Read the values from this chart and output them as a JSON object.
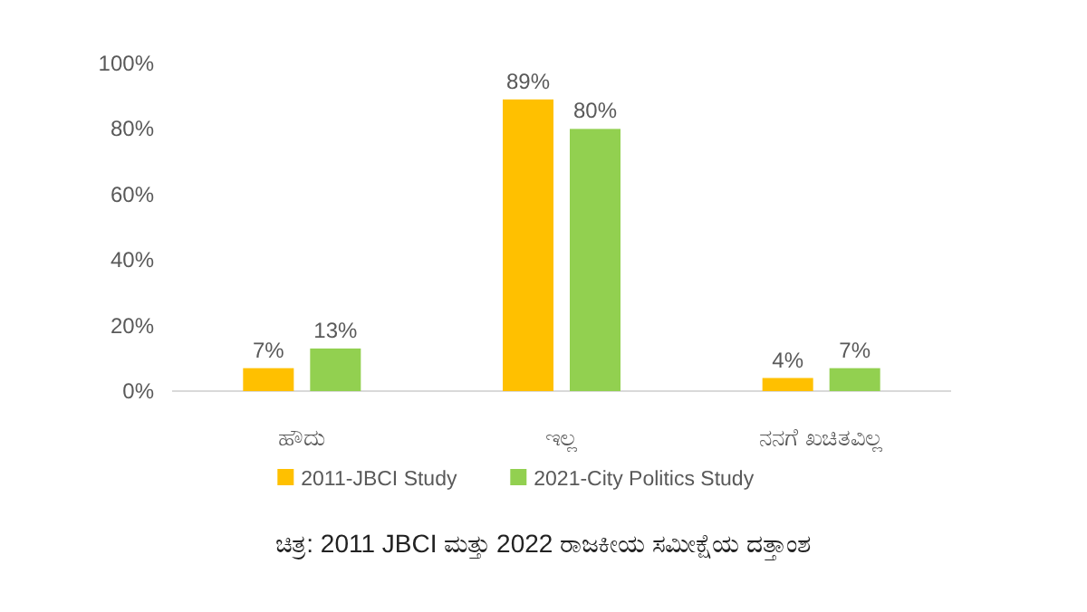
{
  "chart_data": {
    "type": "bar",
    "categories": [
      "ಹೌದು",
      "ಇಲ್ಲ",
      "ನನಗೆ ಖಚಿತವಿಲ್ಲ"
    ],
    "series": [
      {
        "name": "2011-JBCI Study",
        "color": "#ffc000",
        "values": [
          7,
          89,
          4
        ],
        "value_labels": [
          "7%",
          "89%",
          "4%"
        ]
      },
      {
        "name": "2021-City Politics Study",
        "color": "#92d050",
        "values": [
          13,
          80,
          7
        ],
        "value_labels": [
          "13%",
          "80%",
          "7%"
        ]
      }
    ],
    "ylim": [
      0,
      100
    ],
    "yticks": [
      {
        "value": 0,
        "label": "0%"
      },
      {
        "value": 20,
        "label": "20%"
      },
      {
        "value": 40,
        "label": "40%"
      },
      {
        "value": 60,
        "label": "60%"
      },
      {
        "value": 80,
        "label": "80%"
      },
      {
        "value": 100,
        "label": "100%"
      }
    ],
    "grid": false,
    "legend": "bottom",
    "annotations": [
      "ಚಿತ್ರ: 2011 JBCI ಮತ್ತು 2022 ರಾಜಕೀಯ ಸಮೀಕ್ಷೆಯ ದತ್ತಾಂಶ"
    ]
  }
}
